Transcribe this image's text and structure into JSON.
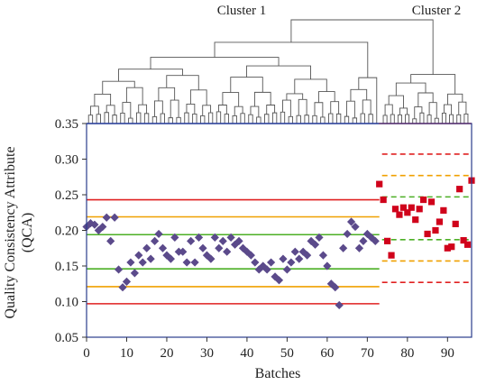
{
  "chart_data": {
    "type": "scatter",
    "xlabel": "Batches",
    "ylabel": "Quality Consistency Attribute (QCA)",
    "xlim": [
      0,
      96
    ],
    "ylim": [
      0.05,
      0.35
    ],
    "xticks": [
      "0",
      "10",
      "20",
      "30",
      "40",
      "50",
      "60",
      "70",
      "80",
      "90"
    ],
    "yticks": [
      "0.05",
      "0.10",
      "0.15",
      "0.20",
      "0.25",
      "0.30",
      "0.35"
    ],
    "grid": false,
    "cluster_labels": [
      "Cluster 1",
      "Cluster 2"
    ],
    "series": [
      {
        "marker": "diamond",
        "color": "#5b4a8b",
        "points": [
          [
            0,
            0.205
          ],
          [
            1,
            0.21
          ],
          [
            2,
            0.208
          ],
          [
            3,
            0.2
          ],
          [
            4,
            0.205
          ],
          [
            5,
            0.218
          ],
          [
            6,
            0.185
          ],
          [
            7,
            0.218
          ],
          [
            8,
            0.145
          ],
          [
            9,
            0.12
          ],
          [
            10,
            0.128
          ],
          [
            11,
            0.155
          ],
          [
            12,
            0.14
          ],
          [
            13,
            0.165
          ],
          [
            14,
            0.155
          ],
          [
            15,
            0.175
          ],
          [
            16,
            0.16
          ],
          [
            17,
            0.185
          ],
          [
            18,
            0.195
          ],
          [
            19,
            0.175
          ],
          [
            20,
            0.165
          ],
          [
            21,
            0.16
          ],
          [
            22,
            0.19
          ],
          [
            23,
            0.17
          ],
          [
            24,
            0.17
          ],
          [
            25,
            0.155
          ],
          [
            26,
            0.185
          ],
          [
            27,
            0.155
          ],
          [
            28,
            0.19
          ],
          [
            29,
            0.175
          ],
          [
            30,
            0.165
          ],
          [
            31,
            0.16
          ],
          [
            32,
            0.19
          ],
          [
            33,
            0.175
          ],
          [
            34,
            0.185
          ],
          [
            35,
            0.17
          ],
          [
            36,
            0.19
          ],
          [
            37,
            0.18
          ],
          [
            38,
            0.185
          ],
          [
            39,
            0.175
          ],
          [
            40,
            0.17
          ],
          [
            41,
            0.165
          ],
          [
            42,
            0.155
          ],
          [
            43,
            0.145
          ],
          [
            44,
            0.15
          ],
          [
            45,
            0.145
          ],
          [
            46,
            0.155
          ],
          [
            47,
            0.135
          ],
          [
            48,
            0.13
          ],
          [
            49,
            0.16
          ],
          [
            50,
            0.145
          ],
          [
            51,
            0.155
          ],
          [
            52,
            0.17
          ],
          [
            53,
            0.16
          ],
          [
            54,
            0.17
          ],
          [
            55,
            0.165
          ],
          [
            56,
            0.185
          ],
          [
            57,
            0.18
          ],
          [
            58,
            0.19
          ],
          [
            59,
            0.165
          ],
          [
            60,
            0.15
          ],
          [
            61,
            0.125
          ],
          [
            62,
            0.12
          ],
          [
            63,
            0.095
          ],
          [
            64,
            0.175
          ],
          [
            65,
            0.195
          ],
          [
            66,
            0.212
          ],
          [
            67,
            0.205
          ],
          [
            68,
            0.175
          ],
          [
            69,
            0.185
          ],
          [
            70,
            0.195
          ],
          [
            71,
            0.19
          ],
          [
            72,
            0.185
          ]
        ]
      },
      {
        "marker": "square",
        "color": "#d0021b",
        "points": [
          [
            73,
            0.265
          ],
          [
            74,
            0.243
          ],
          [
            75,
            0.185
          ],
          [
            76,
            0.165
          ],
          [
            77,
            0.23
          ],
          [
            78,
            0.222
          ],
          [
            79,
            0.232
          ],
          [
            80,
            0.225
          ],
          [
            81,
            0.232
          ],
          [
            82,
            0.215
          ],
          [
            83,
            0.23
          ],
          [
            84,
            0.243
          ],
          [
            85,
            0.195
          ],
          [
            86,
            0.24
          ],
          [
            87,
            0.2
          ],
          [
            88,
            0.212
          ],
          [
            89,
            0.228
          ],
          [
            90,
            0.175
          ],
          [
            91,
            0.177
          ],
          [
            92,
            0.209
          ],
          [
            93,
            0.258
          ],
          [
            94,
            0.186
          ],
          [
            95,
            0.18
          ],
          [
            96,
            0.27
          ]
        ]
      }
    ],
    "reference_lines": [
      {
        "y": 0.243,
        "x_from": 0,
        "x_to": 73,
        "color": "#e02020",
        "dashed": false
      },
      {
        "y": 0.219,
        "x_from": 0,
        "x_to": 73,
        "color": "#f0a000",
        "dashed": false
      },
      {
        "y": 0.194,
        "x_from": 0,
        "x_to": 73,
        "color": "#4caf25",
        "dashed": false
      },
      {
        "y": 0.146,
        "x_from": 0,
        "x_to": 73,
        "color": "#4caf25",
        "dashed": false
      },
      {
        "y": 0.121,
        "x_from": 0,
        "x_to": 73,
        "color": "#f0a000",
        "dashed": false
      },
      {
        "y": 0.097,
        "x_from": 0,
        "x_to": 73,
        "color": "#e02020",
        "dashed": false
      },
      {
        "y": 0.307,
        "x_from": 73,
        "x_to": 96,
        "color": "#e02020",
        "dashed": true
      },
      {
        "y": 0.277,
        "x_from": 73,
        "x_to": 96,
        "color": "#f0a000",
        "dashed": true
      },
      {
        "y": 0.247,
        "x_from": 73,
        "x_to": 96,
        "color": "#4caf25",
        "dashed": true
      },
      {
        "y": 0.187,
        "x_from": 73,
        "x_to": 96,
        "color": "#4caf25",
        "dashed": true
      },
      {
        "y": 0.157,
        "x_from": 73,
        "x_to": 96,
        "color": "#f0a000",
        "dashed": true
      },
      {
        "y": 0.127,
        "x_from": 73,
        "x_to": 96,
        "color": "#e02020",
        "dashed": true
      }
    ],
    "dendrogram": {
      "cluster1_color": "#555555",
      "cluster2_color": "#555555",
      "baseline_cluster1_color": "#3355cc",
      "baseline_cluster2_color": "#d0021b"
    }
  }
}
